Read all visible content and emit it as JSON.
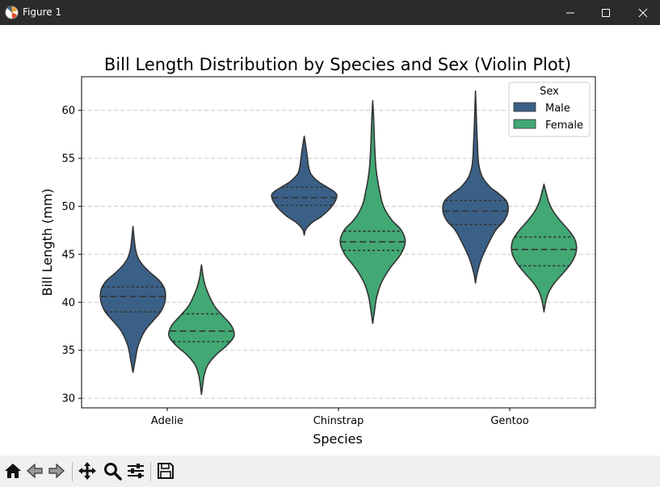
{
  "window": {
    "title": "Figure 1",
    "icons": [
      "app-icon",
      "minimize-icon",
      "maximize-icon",
      "close-icon"
    ]
  },
  "toolbar": {
    "buttons": [
      "home-icon",
      "back-icon",
      "forward-icon",
      "pan-icon",
      "zoom-icon",
      "configure-subplots-icon",
      "save-icon"
    ]
  },
  "chart_data": {
    "type": "violin",
    "title": "Bill Length Distribution by Species and Sex (Violin Plot)",
    "xlabel": "Species",
    "ylabel": "Bill Length (mm)",
    "categories": [
      "Adelie",
      "Chinstrap",
      "Gentoo"
    ],
    "ylim": [
      29,
      63.5
    ],
    "yticks": [
      30,
      35,
      40,
      45,
      50,
      55,
      60
    ],
    "grid": "y-dashed",
    "legend": {
      "title": "Sex",
      "placement": "upper-right"
    },
    "colors": {
      "Male": "#3b6087",
      "Female": "#42a874",
      "outline": "#333333",
      "grid": "#c8c8c8"
    },
    "inner": "quartile",
    "series": [
      {
        "name": "Male",
        "violins": [
          {
            "category": "Adelie",
            "min": 32.7,
            "max": 47.9,
            "q1": 39.0,
            "median": 40.6,
            "q3": 41.6,
            "profile": [
              [
                32.7,
                0.0
              ],
              [
                34.0,
                0.07
              ],
              [
                35.5,
                0.16
              ],
              [
                37.0,
                0.36
              ],
              [
                38.0,
                0.6
              ],
              [
                39.0,
                0.85
              ],
              [
                40.0,
                0.98
              ],
              [
                40.8,
                1.0
              ],
              [
                41.5,
                0.96
              ],
              [
                42.3,
                0.8
              ],
              [
                43.0,
                0.56
              ],
              [
                43.8,
                0.32
              ],
              [
                44.6,
                0.16
              ],
              [
                45.5,
                0.08
              ],
              [
                46.5,
                0.04
              ],
              [
                47.9,
                0.0
              ]
            ]
          },
          {
            "category": "Chinstrap",
            "min": 47.0,
            "max": 57.3,
            "q1": 50.1,
            "median": 50.9,
            "q3": 52.0,
            "profile": [
              [
                47.0,
                0.0
              ],
              [
                47.6,
                0.05
              ],
              [
                48.3,
                0.24
              ],
              [
                49.0,
                0.55
              ],
              [
                50.0,
                0.85
              ],
              [
                51.0,
                1.0
              ],
              [
                51.5,
                0.93
              ],
              [
                52.0,
                0.7
              ],
              [
                52.6,
                0.42
              ],
              [
                53.4,
                0.2
              ],
              [
                54.2,
                0.13
              ],
              [
                55.0,
                0.1
              ],
              [
                56.0,
                0.06
              ],
              [
                57.3,
                0.0
              ]
            ]
          },
          {
            "category": "Gentoo",
            "min": 42.0,
            "max": 62.0,
            "q1": 48.1,
            "median": 49.5,
            "q3": 50.6,
            "profile": [
              [
                42.0,
                0.0
              ],
              [
                43.0,
                0.05
              ],
              [
                44.5,
                0.18
              ],
              [
                46.0,
                0.38
              ],
              [
                47.5,
                0.62
              ],
              [
                48.5,
                0.88
              ],
              [
                49.5,
                1.0
              ],
              [
                50.5,
                0.96
              ],
              [
                51.3,
                0.72
              ],
              [
                52.0,
                0.45
              ],
              [
                53.0,
                0.22
              ],
              [
                54.0,
                0.12
              ],
              [
                55.0,
                0.08
              ],
              [
                56.5,
                0.06
              ],
              [
                58.0,
                0.04
              ],
              [
                60.0,
                0.02
              ],
              [
                62.0,
                0.0
              ]
            ]
          }
        ]
      },
      {
        "name": "Female",
        "violins": [
          {
            "category": "Adelie",
            "min": 30.4,
            "max": 43.9,
            "q1": 35.9,
            "median": 37.0,
            "q3": 38.8,
            "profile": [
              [
                30.4,
                0.0
              ],
              [
                31.5,
                0.04
              ],
              [
                32.5,
                0.09
              ],
              [
                33.5,
                0.2
              ],
              [
                34.5,
                0.44
              ],
              [
                35.5,
                0.78
              ],
              [
                36.5,
                1.0
              ],
              [
                37.5,
                0.93
              ],
              [
                38.5,
                0.68
              ],
              [
                39.5,
                0.42
              ],
              [
                40.5,
                0.26
              ],
              [
                41.5,
                0.14
              ],
              [
                42.5,
                0.06
              ],
              [
                43.9,
                0.0
              ]
            ]
          },
          {
            "category": "Chinstrap",
            "min": 37.8,
            "max": 61.0,
            "q1": 45.4,
            "median": 46.3,
            "q3": 47.4,
            "profile": [
              [
                37.8,
                0.0
              ],
              [
                39.0,
                0.05
              ],
              [
                40.5,
                0.12
              ],
              [
                42.0,
                0.26
              ],
              [
                43.5,
                0.52
              ],
              [
                45.0,
                0.86
              ],
              [
                46.3,
                1.0
              ],
              [
                47.5,
                0.88
              ],
              [
                48.5,
                0.6
              ],
              [
                49.5,
                0.4
              ],
              [
                50.5,
                0.28
              ],
              [
                51.5,
                0.22
              ],
              [
                52.5,
                0.16
              ],
              [
                54.0,
                0.1
              ],
              [
                55.5,
                0.07
              ],
              [
                57.0,
                0.05
              ],
              [
                59.0,
                0.03
              ],
              [
                61.0,
                0.0
              ]
            ]
          },
          {
            "category": "Gentoo",
            "min": 39.0,
            "max": 52.3,
            "q1": 43.8,
            "median": 45.5,
            "q3": 46.8,
            "profile": [
              [
                39.0,
                0.0
              ],
              [
                40.0,
                0.05
              ],
              [
                41.0,
                0.14
              ],
              [
                42.0,
                0.32
              ],
              [
                43.0,
                0.58
              ],
              [
                44.0,
                0.82
              ],
              [
                45.0,
                0.97
              ],
              [
                45.8,
                1.0
              ],
              [
                46.6,
                0.94
              ],
              [
                47.5,
                0.76
              ],
              [
                48.5,
                0.5
              ],
              [
                49.5,
                0.28
              ],
              [
                50.5,
                0.14
              ],
              [
                51.5,
                0.06
              ],
              [
                52.3,
                0.0
              ]
            ]
          }
        ]
      }
    ]
  }
}
